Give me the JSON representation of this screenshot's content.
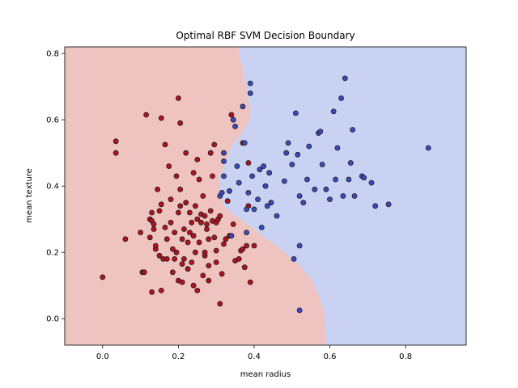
{
  "chart_data": {
    "type": "scatter",
    "title": "Optimal RBF SVM Decision Boundary",
    "xlabel": "mean radius",
    "ylabel": "mean texture",
    "xlim": [
      -0.1,
      0.96
    ],
    "ylim": [
      -0.08,
      0.82
    ],
    "xticks": [
      "0.0",
      "0.2",
      "0.4",
      "0.6",
      "0.8"
    ],
    "yticks": [
      "0.0",
      "0.2",
      "0.4",
      "0.6",
      "0.8"
    ],
    "grid": false,
    "colors": {
      "region_red": "#efc3c0",
      "region_blue": "#c9d2f2",
      "point_red": "#b4121e",
      "point_blue": "#3a4cc0",
      "edge": "#1a1a1a"
    },
    "decision_boundary": {
      "x": [
        0.36,
        0.36,
        0.37,
        0.37,
        0.38,
        0.38,
        0.39,
        0.39,
        0.38,
        0.36,
        0.34,
        0.33,
        0.32,
        0.31,
        0.31,
        0.31,
        0.32,
        0.35,
        0.39,
        0.42,
        0.46,
        0.49,
        0.52,
        0.55,
        0.57,
        0.585,
        0.59
      ],
      "y": [
        0.82,
        0.79,
        0.76,
        0.73,
        0.7,
        0.67,
        0.64,
        0.61,
        0.58,
        0.55,
        0.52,
        0.49,
        0.46,
        0.43,
        0.4,
        0.37,
        0.34,
        0.31,
        0.28,
        0.25,
        0.22,
        0.19,
        0.16,
        0.12,
        0.07,
        0.02,
        -0.08
      ]
    },
    "series": [
      {
        "class": "red",
        "points": [
          [
            0.0,
            0.125
          ],
          [
            0.035,
            0.535
          ],
          [
            0.035,
            0.5
          ],
          [
            0.06,
            0.24
          ],
          [
            0.1,
            0.26
          ],
          [
            0.105,
            0.14
          ],
          [
            0.11,
            0.14
          ],
          [
            0.115,
            0.615
          ],
          [
            0.125,
            0.245
          ],
          [
            0.125,
            0.3
          ],
          [
            0.13,
            0.295
          ],
          [
            0.13,
            0.08
          ],
          [
            0.13,
            0.32
          ],
          [
            0.135,
            0.27
          ],
          [
            0.135,
            0.285
          ],
          [
            0.14,
            0.21
          ],
          [
            0.14,
            0.22
          ],
          [
            0.145,
            0.39
          ],
          [
            0.15,
            0.19
          ],
          [
            0.15,
            0.325
          ],
          [
            0.155,
            0.085
          ],
          [
            0.155,
            0.605
          ],
          [
            0.155,
            0.345
          ],
          [
            0.16,
            0.18
          ],
          [
            0.165,
            0.525
          ],
          [
            0.165,
            0.275
          ],
          [
            0.17,
            0.18
          ],
          [
            0.17,
            0.24
          ],
          [
            0.175,
            0.46
          ],
          [
            0.18,
            0.29
          ],
          [
            0.18,
            0.36
          ],
          [
            0.185,
            0.14
          ],
          [
            0.185,
            0.21
          ],
          [
            0.19,
            0.18
          ],
          [
            0.19,
            0.26
          ],
          [
            0.195,
            0.2
          ],
          [
            0.195,
            0.43
          ],
          [
            0.2,
            0.665
          ],
          [
            0.2,
            0.32
          ],
          [
            0.2,
            0.115
          ],
          [
            0.205,
            0.34
          ],
          [
            0.205,
            0.59
          ],
          [
            0.205,
            0.39
          ],
          [
            0.21,
            0.11
          ],
          [
            0.21,
            0.165
          ],
          [
            0.21,
            0.24
          ],
          [
            0.215,
            0.27
          ],
          [
            0.215,
            0.18
          ],
          [
            0.22,
            0.35
          ],
          [
            0.22,
            0.5
          ],
          [
            0.225,
            0.15
          ],
          [
            0.225,
            0.23
          ],
          [
            0.23,
            0.26
          ],
          [
            0.23,
            0.32
          ],
          [
            0.235,
            0.29
          ],
          [
            0.235,
            0.17
          ],
          [
            0.24,
            0.25
          ],
          [
            0.24,
            0.44
          ],
          [
            0.24,
            0.1
          ],
          [
            0.245,
            0.2
          ],
          [
            0.245,
            0.34
          ],
          [
            0.25,
            0.48
          ],
          [
            0.25,
            0.3
          ],
          [
            0.25,
            0.085
          ],
          [
            0.255,
            0.23
          ],
          [
            0.255,
            0.42
          ],
          [
            0.26,
            0.29
          ],
          [
            0.26,
            0.315
          ],
          [
            0.265,
            0.37
          ],
          [
            0.265,
            0.13
          ],
          [
            0.27,
            0.19
          ],
          [
            0.27,
            0.2
          ],
          [
            0.27,
            0.31
          ],
          [
            0.275,
            0.27
          ],
          [
            0.275,
            0.285
          ],
          [
            0.28,
            0.24
          ],
          [
            0.28,
            0.115
          ],
          [
            0.28,
            0.16
          ],
          [
            0.285,
            0.5
          ],
          [
            0.285,
            0.325
          ],
          [
            0.29,
            0.295
          ],
          [
            0.29,
            0.43
          ],
          [
            0.295,
            0.525
          ],
          [
            0.295,
            0.245
          ],
          [
            0.3,
            0.17
          ],
          [
            0.3,
            0.205
          ],
          [
            0.3,
            0.29
          ],
          [
            0.305,
            0.3
          ],
          [
            0.31,
            0.31
          ],
          [
            0.31,
            0.045
          ],
          [
            0.315,
            0.135
          ],
          [
            0.32,
            0.225
          ],
          [
            0.325,
            0.24
          ],
          [
            0.33,
            0.355
          ],
          [
            0.335,
            0.25
          ],
          [
            0.34,
            0.615
          ],
          [
            0.345,
            0.285
          ],
          [
            0.35,
            0.175
          ],
          [
            0.36,
            0.18
          ],
          [
            0.365,
            0.205
          ],
          [
            0.37,
            0.53
          ],
          [
            0.37,
            0.21
          ],
          [
            0.375,
            0.155
          ],
          [
            0.38,
            0.22
          ],
          [
            0.385,
            0.47
          ],
          [
            0.39,
            0.11
          ],
          [
            0.4,
            0.22
          ],
          [
            0.385,
            0.34
          ]
        ]
      },
      {
        "class": "blue",
        "points": [
          [
            0.31,
            0.37
          ],
          [
            0.315,
            0.38
          ],
          [
            0.32,
            0.5
          ],
          [
            0.32,
            0.475
          ],
          [
            0.32,
            0.43
          ],
          [
            0.335,
            0.385
          ],
          [
            0.34,
            0.25
          ],
          [
            0.345,
            0.6
          ],
          [
            0.35,
            0.58
          ],
          [
            0.355,
            0.46
          ],
          [
            0.36,
            0.41
          ],
          [
            0.37,
            0.64
          ],
          [
            0.375,
            0.53
          ],
          [
            0.38,
            0.26
          ],
          [
            0.38,
            0.33
          ],
          [
            0.385,
            0.38
          ],
          [
            0.39,
            0.68
          ],
          [
            0.39,
            0.71
          ],
          [
            0.395,
            0.43
          ],
          [
            0.4,
            0.33
          ],
          [
            0.41,
            0.36
          ],
          [
            0.415,
            0.45
          ],
          [
            0.42,
            0.275
          ],
          [
            0.425,
            0.46
          ],
          [
            0.43,
            0.4
          ],
          [
            0.435,
            0.34
          ],
          [
            0.44,
            0.44
          ],
          [
            0.445,
            0.35
          ],
          [
            0.46,
            0.31
          ],
          [
            0.48,
            0.415
          ],
          [
            0.485,
            0.5
          ],
          [
            0.49,
            0.53
          ],
          [
            0.5,
            0.465
          ],
          [
            0.505,
            0.18
          ],
          [
            0.51,
            0.62
          ],
          [
            0.515,
            0.495
          ],
          [
            0.52,
            0.22
          ],
          [
            0.52,
            0.025
          ],
          [
            0.52,
            0.37
          ],
          [
            0.53,
            0.35
          ],
          [
            0.54,
            0.42
          ],
          [
            0.545,
            0.52
          ],
          [
            0.56,
            0.39
          ],
          [
            0.57,
            0.56
          ],
          [
            0.575,
            0.565
          ],
          [
            0.58,
            0.465
          ],
          [
            0.59,
            0.39
          ],
          [
            0.6,
            0.36
          ],
          [
            0.61,
            0.625
          ],
          [
            0.615,
            0.42
          ],
          [
            0.62,
            0.515
          ],
          [
            0.63,
            0.665
          ],
          [
            0.635,
            0.37
          ],
          [
            0.64,
            0.725
          ],
          [
            0.65,
            0.42
          ],
          [
            0.655,
            0.47
          ],
          [
            0.66,
            0.57
          ],
          [
            0.665,
            0.37
          ],
          [
            0.685,
            0.43
          ],
          [
            0.69,
            0.425
          ],
          [
            0.71,
            0.41
          ],
          [
            0.72,
            0.34
          ],
          [
            0.755,
            0.345
          ],
          [
            0.86,
            0.515
          ]
        ]
      }
    ]
  }
}
